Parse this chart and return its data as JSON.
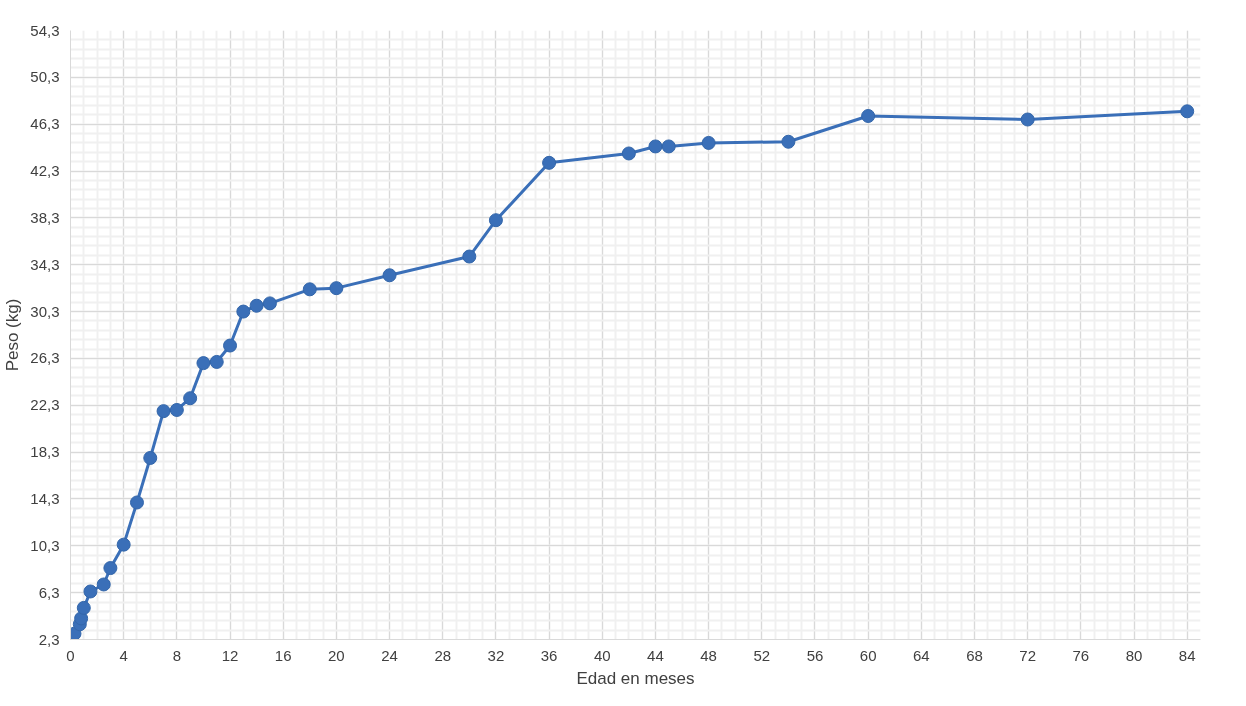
{
  "chart_data": {
    "type": "line",
    "xlabel": "Edad en meses",
    "ylabel": "Peso (kg)",
    "x": [
      0,
      0.3,
      0.7,
      0.8,
      1,
      1.5,
      2.5,
      3,
      4,
      5,
      6,
      7,
      8,
      9,
      10,
      11,
      12,
      13,
      14,
      15,
      18,
      20,
      24,
      30,
      32,
      36,
      42,
      44,
      45,
      48,
      54,
      60,
      72,
      84
    ],
    "series": [
      {
        "color": "#3a6fb8",
        "values": [
          2.4,
          2.8,
          3.6,
          4.1,
          5.0,
          6.4,
          7.0,
          8.4,
          10.4,
          14.0,
          17.8,
          21.8,
          21.9,
          22.9,
          25.9,
          26.0,
          27.4,
          30.3,
          30.8,
          31.0,
          32.2,
          32.3,
          33.4,
          35.0,
          38.1,
          43.0,
          43.8,
          44.4,
          44.4,
          44.7,
          44.8,
          47.0,
          46.7,
          47.4
        ]
      }
    ],
    "xlim": [
      0,
      85
    ],
    "ylim": [
      2.3,
      54.3
    ],
    "xticks": [
      0,
      4,
      8,
      12,
      16,
      20,
      24,
      28,
      32,
      36,
      40,
      44,
      48,
      52,
      56,
      60,
      64,
      68,
      72,
      76,
      80,
      84
    ],
    "yticks": [
      {
        "value": 2.3,
        "label": "2,3"
      },
      {
        "value": 6.3,
        "label": "6,3"
      },
      {
        "value": 10.3,
        "label": "10,3"
      },
      {
        "value": 14.3,
        "label": "14,3"
      },
      {
        "value": 18.3,
        "label": "18,3"
      },
      {
        "value": 22.3,
        "label": "22,3"
      },
      {
        "value": 26.3,
        "label": "26,3"
      },
      {
        "value": 30.3,
        "label": "30,3"
      },
      {
        "value": 34.3,
        "label": "34,3"
      },
      {
        "value": 38.3,
        "label": "38,3"
      },
      {
        "value": 42.3,
        "label": "42,3"
      },
      {
        "value": 46.3,
        "label": "46,3"
      },
      {
        "value": 50.3,
        "label": "50,3"
      },
      {
        "value": 54.3,
        "label": "54,3"
      }
    ],
    "grid": true,
    "marker": "circle",
    "line_style": "solid"
  }
}
